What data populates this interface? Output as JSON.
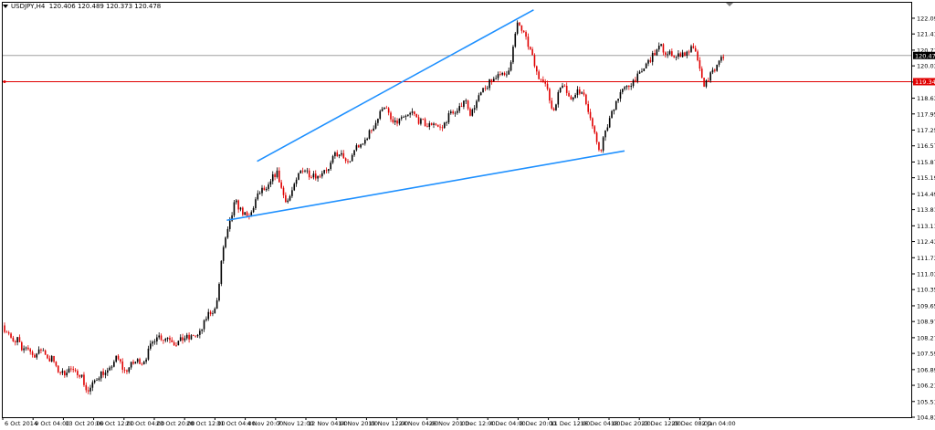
{
  "header": {
    "symbol": "USDJPY,H4",
    "ohlc": "120.406 120.489 120.373 120.478"
  },
  "colors": {
    "background": "#ffffff",
    "up_candle": "#000000",
    "down_candle": "#e00000",
    "trendline": "#1e90ff",
    "level_line": "#e00000",
    "price_line": "#a0a0a0",
    "axis": "#000000"
  },
  "chart_data": {
    "type": "candlestick",
    "ylim": [
      104.83,
      122.76
    ],
    "y_ticks": [
      "122.090",
      "121.410",
      "120.710",
      "120.030",
      "119.330",
      "118.630",
      "117.950",
      "117.250",
      "116.570",
      "115.870",
      "115.190",
      "114.490",
      "113.810",
      "113.110",
      "112.430",
      "111.730",
      "111.030",
      "110.350",
      "109.650",
      "108.970",
      "108.270",
      "107.590",
      "106.890",
      "106.210",
      "105.510",
      "104.830"
    ],
    "x_labels": [
      "6 Oct 2014",
      "9 Oct 04:00",
      "13 Oct 20:00",
      "16 Oct 12:00",
      "21 Oct 04:00",
      "23 Oct 20:00",
      "28 Oct 12:00",
      "31 Oct 04:00",
      "4 Nov 20:00",
      "7 Nov 12:00",
      "12 Nov 04:00",
      "14 Nov 20:00",
      "19 Nov 12:00",
      "24 Nov 04:00",
      "26 Nov 20:00",
      "1 Dec 12:00",
      "4 Dec 04:00",
      "8 Dec 20:00",
      "11 Dec 12:00",
      "16 Dec 04:00",
      "18 Dec 20:00",
      "23 Dec 12:00",
      "29 Dec 08:00",
      "2 Jan 04:00"
    ],
    "current_price": "120.478",
    "level_price": "119.345",
    "path": [
      [
        0,
        109.3
      ],
      [
        6,
        108.7
      ],
      [
        12,
        108.5
      ],
      [
        18,
        107.9
      ],
      [
        22,
        108.3
      ],
      [
        26,
        107.6
      ],
      [
        30,
        107.9
      ],
      [
        34,
        107.8
      ],
      [
        38,
        107.5
      ],
      [
        44,
        107.6
      ],
      [
        48,
        107.8
      ],
      [
        52,
        107.6
      ],
      [
        56,
        107.3
      ],
      [
        60,
        107.4
      ],
      [
        64,
        106.9
      ],
      [
        68,
        106.8
      ],
      [
        72,
        106.7
      ],
      [
        76,
        106.9
      ],
      [
        80,
        106.9
      ],
      [
        84,
        106.7
      ],
      [
        88,
        106.8
      ],
      [
        92,
        106.6
      ],
      [
        95,
        106.2
      ],
      [
        98,
        105.9
      ],
      [
        102,
        106.1
      ],
      [
        106,
        106.4
      ],
      [
        110,
        106.6
      ],
      [
        114,
        106.8
      ],
      [
        118,
        106.7
      ],
      [
        122,
        106.8
      ],
      [
        126,
        107.2
      ],
      [
        130,
        107.4
      ],
      [
        134,
        107.2
      ],
      [
        138,
        106.8
      ],
      [
        142,
        106.9
      ],
      [
        146,
        107.1
      ],
      [
        150,
        107.2
      ],
      [
        154,
        107.3
      ],
      [
        158,
        107.2
      ],
      [
        162,
        107.4
      ],
      [
        166,
        107.8
      ],
      [
        170,
        108.1
      ],
      [
        174,
        108.4
      ],
      [
        178,
        108.3
      ],
      [
        182,
        108.2
      ],
      [
        186,
        108.3
      ],
      [
        190,
        108.2
      ],
      [
        194,
        108.0
      ],
      [
        198,
        108.1
      ],
      [
        202,
        108.2
      ],
      [
        206,
        108.3
      ],
      [
        210,
        108.2
      ],
      [
        214,
        108.4
      ],
      [
        218,
        108.3
      ],
      [
        222,
        108.5
      ],
      [
        226,
        108.9
      ],
      [
        230,
        109.3
      ],
      [
        234,
        109.4
      ],
      [
        238,
        109.5
      ],
      [
        242,
        110.3
      ],
      [
        244,
        111.4
      ],
      [
        246,
        112.0
      ],
      [
        248,
        112.3
      ],
      [
        250,
        112.6
      ],
      [
        252,
        112.9
      ],
      [
        254,
        113.2
      ],
      [
        256,
        113.5
      ],
      [
        258,
        113.9
      ],
      [
        260,
        114.2
      ],
      [
        262,
        114.0
      ],
      [
        266,
        113.8
      ],
      [
        270,
        113.6
      ],
      [
        274,
        113.4
      ],
      [
        278,
        113.7
      ],
      [
        282,
        114.2
      ],
      [
        286,
        114.5
      ],
      [
        290,
        114.7
      ],
      [
        294,
        114.6
      ],
      [
        298,
        114.9
      ],
      [
        302,
        115.3
      ],
      [
        306,
        115.4
      ],
      [
        310,
        114.8
      ],
      [
        314,
        114.3
      ],
      [
        318,
        114.2
      ],
      [
        322,
        114.6
      ],
      [
        326,
        114.9
      ],
      [
        330,
        115.4
      ],
      [
        334,
        115.6
      ],
      [
        338,
        115.5
      ],
      [
        342,
        115.3
      ],
      [
        346,
        115.4
      ],
      [
        350,
        115.2
      ],
      [
        354,
        115.4
      ],
      [
        358,
        115.6
      ],
      [
        362,
        115.5
      ],
      [
        366,
        115.9
      ],
      [
        370,
        116.3
      ],
      [
        374,
        116.1
      ],
      [
        378,
        116.2
      ],
      [
        382,
        115.7
      ],
      [
        386,
        115.9
      ],
      [
        390,
        116.4
      ],
      [
        394,
        116.6
      ],
      [
        398,
        116.5
      ],
      [
        402,
        116.8
      ],
      [
        406,
        117.1
      ],
      [
        410,
        117.3
      ],
      [
        414,
        117.6
      ],
      [
        418,
        117.9
      ],
      [
        422,
        118.4
      ],
      [
        426,
        118.1
      ],
      [
        430,
        117.7
      ],
      [
        434,
        117.5
      ],
      [
        438,
        117.6
      ],
      [
        442,
        117.8
      ],
      [
        446,
        117.7
      ],
      [
        450,
        117.9
      ],
      [
        454,
        118.0
      ],
      [
        458,
        117.8
      ],
      [
        462,
        117.6
      ],
      [
        466,
        117.6
      ],
      [
        470,
        117.4
      ],
      [
        474,
        117.5
      ],
      [
        478,
        117.6
      ],
      [
        482,
        117.4
      ],
      [
        486,
        117.3
      ],
      [
        490,
        117.6
      ],
      [
        494,
        117.9
      ],
      [
        498,
        118.1
      ],
      [
        502,
        117.9
      ],
      [
        506,
        118.2
      ],
      [
        510,
        118.6
      ],
      [
        514,
        118.4
      ],
      [
        518,
        117.9
      ],
      [
        522,
        118.3
      ],
      [
        526,
        118.6
      ],
      [
        530,
        118.9
      ],
      [
        534,
        119.0
      ],
      [
        538,
        119.3
      ],
      [
        542,
        119.4
      ],
      [
        546,
        119.6
      ],
      [
        550,
        119.8
      ],
      [
        554,
        119.5
      ],
      [
        558,
        119.7
      ],
      [
        562,
        120.3
      ],
      [
        566,
        121.2
      ],
      [
        568,
        121.7
      ],
      [
        570,
        121.9
      ],
      [
        572,
        121.7
      ],
      [
        576,
        121.4
      ],
      [
        580,
        121.0
      ],
      [
        584,
        120.6
      ],
      [
        588,
        120.0
      ],
      [
        592,
        119.5
      ],
      [
        596,
        119.6
      ],
      [
        600,
        119.2
      ],
      [
        604,
        118.6
      ],
      [
        608,
        118.0
      ],
      [
        612,
        118.6
      ],
      [
        616,
        119.1
      ],
      [
        620,
        119.4
      ],
      [
        624,
        118.8
      ],
      [
        628,
        118.5
      ],
      [
        632,
        118.9
      ],
      [
        636,
        119.0
      ],
      [
        640,
        118.8
      ],
      [
        644,
        118.5
      ],
      [
        648,
        117.9
      ],
      [
        652,
        117.3
      ],
      [
        656,
        116.6
      ],
      [
        660,
        116.3
      ],
      [
        662,
        116.8
      ],
      [
        666,
        117.2
      ],
      [
        670,
        117.7
      ],
      [
        674,
        118.2
      ],
      [
        678,
        118.6
      ],
      [
        682,
        118.9
      ],
      [
        686,
        119.0
      ],
      [
        690,
        119.1
      ],
      [
        694,
        119.3
      ],
      [
        698,
        119.5
      ],
      [
        702,
        119.6
      ],
      [
        706,
        119.8
      ],
      [
        710,
        120.1
      ],
      [
        714,
        120.3
      ],
      [
        718,
        120.5
      ],
      [
        722,
        120.7
      ],
      [
        726,
        120.9
      ],
      [
        730,
        120.6
      ],
      [
        734,
        120.5
      ],
      [
        738,
        120.6
      ],
      [
        742,
        120.4
      ],
      [
        746,
        120.5
      ],
      [
        750,
        120.6
      ],
      [
        754,
        120.5
      ],
      [
        758,
        120.8
      ],
      [
        762,
        120.7
      ],
      [
        766,
        120.4
      ],
      [
        770,
        119.5
      ],
      [
        774,
        119.2
      ],
      [
        778,
        119.5
      ],
      [
        782,
        119.7
      ],
      [
        786,
        119.9
      ],
      [
        790,
        120.2
      ],
      [
        794,
        120.4
      ]
    ],
    "trendlines": [
      {
        "from": [
          "4 Nov 20:00",
          115.9
        ],
        "to": [
          "8 Dec 20:00",
          122.45
        ]
      },
      {
        "from": [
          "31 Oct 04:00",
          113.35
        ],
        "to": [
          "18 Dec 20:00",
          116.35
        ]
      }
    ]
  }
}
